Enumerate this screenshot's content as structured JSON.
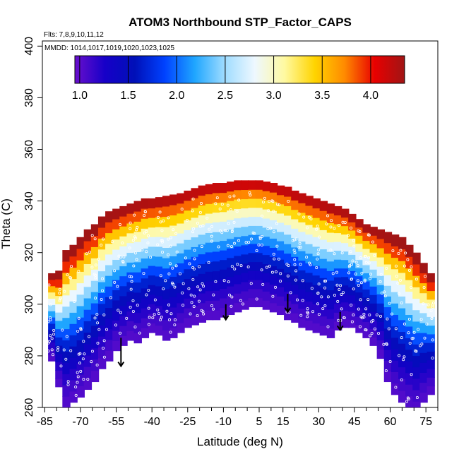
{
  "chart_data": {
    "type": "heatmap",
    "title": "ATOM3 Northbound STP_Factor_CAPS",
    "flights_note": "Flts: 7,8,9,10,11,12",
    "dates_note": "MMDD: 1014,1017,1019,1020,1023,1025",
    "xlabel": "Latitude (deg N)",
    "ylabel": "Theta (C)",
    "xlim": [
      -86,
      80
    ],
    "ylim": [
      260,
      402
    ],
    "x_ticks": [
      -85,
      -70,
      -55,
      -40,
      -25,
      -10,
      5,
      15,
      30,
      45,
      60,
      75
    ],
    "y_ticks": [
      260,
      280,
      300,
      320,
      340,
      360,
      380,
      400
    ],
    "colorbar": {
      "range": [
        0.95,
        4.35
      ],
      "ticks": [
        "1.0",
        "1.5",
        "2.0",
        "2.5",
        "3.0",
        "3.5",
        "4.0"
      ],
      "tick_values": [
        1.0,
        1.5,
        2.0,
        2.5,
        3.0,
        3.5,
        4.0
      ]
    },
    "colormap": [
      "#6a0fcc",
      "#1600c8",
      "#0010b8",
      "#0042ff",
      "#1fa6ff",
      "#9fdcff",
      "#eef8ff",
      "#fff9a0",
      "#ffd400",
      "#ff8a00",
      "#e80000",
      "#a01515"
    ],
    "profile": {
      "lat": [
        -82,
        -79,
        -76,
        -73,
        -70,
        -67,
        -64,
        -61,
        -58,
        -55,
        -52,
        -49,
        -46,
        -43,
        -40,
        -37,
        -34,
        -31,
        -28,
        -25,
        -22,
        -19,
        -16,
        -13,
        -10,
        -7,
        -4,
        -1,
        2,
        5,
        8,
        11,
        14,
        17,
        20,
        23,
        26,
        29,
        32,
        35,
        38,
        41,
        44,
        47,
        50,
        53,
        56,
        59,
        62,
        65,
        68,
        71,
        74,
        77
      ],
      "theta_top": [
        312,
        313,
        321,
        323,
        326,
        329,
        331,
        334,
        336,
        337,
        338,
        339,
        340,
        341,
        341,
        341.5,
        342,
        342.5,
        343,
        344,
        345,
        346,
        346.5,
        347,
        347,
        347.5,
        348,
        348,
        348,
        348,
        347.5,
        347,
        346,
        345.5,
        344,
        343,
        342,
        341,
        340,
        339,
        338,
        337,
        335,
        333,
        331,
        330,
        329,
        328,
        327,
        326,
        323,
        320,
        316,
        312
      ],
      "theta_bottom": [
        278,
        268,
        260,
        262,
        264,
        267,
        270,
        275,
        278,
        282,
        284,
        286,
        285,
        287,
        289,
        288,
        286,
        287,
        289,
        291,
        292,
        293,
        294,
        294,
        295,
        296,
        297,
        298,
        299,
        299,
        298,
        297,
        296,
        294,
        293,
        291,
        290,
        289,
        288,
        287,
        290,
        291,
        291,
        289,
        287,
        284,
        279,
        270,
        265,
        262,
        260,
        258,
        262,
        265
      ]
    },
    "arrows": [
      {
        "lat": -53,
        "theta_start": 287,
        "theta_end": 276
      },
      {
        "lat": -9,
        "theta_start": 300,
        "theta_end": 294
      },
      {
        "lat": 17,
        "theta_start": 304,
        "theta_end": 297
      },
      {
        "lat": 39,
        "theta_start": 297,
        "theta_end": 290
      }
    ]
  }
}
